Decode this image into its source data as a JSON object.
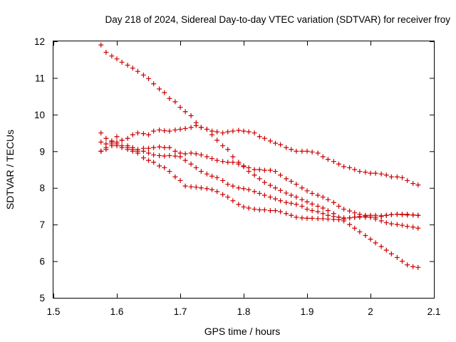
{
  "chart_data": {
    "type": "scatter",
    "title": "Day 218 of 2024, Sidereal Day-to-day VTEC variation (SDTVAR) for receiver froy",
    "xlabel": "GPS time / hours",
    "ylabel": "SDTVAR / TECUs",
    "xlim": [
      1.5,
      2.1
    ],
    "ylim": [
      5,
      12
    ],
    "xticks": [
      1.5,
      1.6,
      1.7,
      1.8,
      1.9,
      2.0,
      2.1
    ],
    "xtick_labels": [
      "1.5",
      "1.6",
      "1.7",
      "1.8",
      "1.9",
      "2",
      "2.1"
    ],
    "yticks": [
      5,
      6,
      7,
      8,
      9,
      10,
      11,
      12
    ],
    "ytick_labels": [
      "5",
      "6",
      "7",
      "8",
      "9",
      "10",
      "11",
      "12"
    ],
    "marker": "+",
    "color": "#cc0000",
    "series": [
      {
        "name": "series-1",
        "x": [
          1.575,
          1.583,
          1.592,
          1.6,
          1.608,
          1.617,
          1.625,
          1.633,
          1.642,
          1.65,
          1.658,
          1.667,
          1.675,
          1.683,
          1.692,
          1.7,
          1.708,
          1.717,
          1.725,
          1.733,
          1.742,
          1.75,
          1.758,
          1.767,
          1.775,
          1.783,
          1.792,
          1.8,
          1.808,
          1.817,
          1.825,
          1.833,
          1.842,
          1.85,
          1.858,
          1.867,
          1.875,
          1.883,
          1.892,
          1.9,
          1.908,
          1.917,
          1.925,
          1.933,
          1.942,
          1.95,
          1.958,
          1.967,
          1.975,
          1.983,
          1.992,
          2.0,
          2.008,
          2.017,
          2.025,
          2.033,
          2.042,
          2.05,
          2.058,
          2.067,
          2.075
        ],
        "y": [
          11.9,
          11.7,
          11.6,
          11.52,
          11.43,
          11.35,
          11.27,
          11.18,
          11.08,
          10.98,
          10.84,
          10.7,
          10.6,
          10.44,
          10.35,
          10.2,
          10.08,
          9.97,
          9.78,
          9.65,
          9.6,
          9.45,
          9.3,
          9.15,
          9.05,
          8.85,
          8.7,
          8.58,
          8.45,
          8.35,
          8.25,
          8.15,
          8.07,
          8.0,
          7.93,
          7.86,
          7.8,
          7.75,
          7.68,
          7.62,
          7.56,
          7.5,
          7.45,
          7.38,
          7.3,
          7.2,
          7.1,
          7.0,
          6.9,
          6.8,
          6.7,
          6.6,
          6.5,
          6.4,
          6.3,
          6.2,
          6.1,
          6.0,
          5.9,
          5.85,
          5.83
        ]
      },
      {
        "name": "series-2",
        "x": [
          1.575,
          1.583,
          1.592,
          1.6,
          1.608,
          1.617,
          1.625,
          1.633,
          1.642,
          1.65,
          1.658,
          1.667,
          1.675,
          1.683,
          1.692,
          1.7,
          1.708,
          1.717,
          1.725,
          1.733,
          1.742,
          1.75,
          1.758,
          1.767,
          1.775,
          1.783,
          1.792,
          1.8,
          1.808,
          1.817,
          1.825,
          1.833,
          1.842,
          1.85,
          1.858,
          1.867,
          1.875,
          1.883,
          1.892,
          1.9,
          1.908,
          1.917,
          1.925,
          1.933,
          1.942,
          1.95,
          1.958,
          1.967,
          1.975,
          1.983,
          1.992,
          2.0,
          2.008,
          2.017,
          2.025,
          2.033,
          2.042,
          2.05,
          2.058,
          2.067,
          2.075
        ],
        "y": [
          9.0,
          9.1,
          9.2,
          9.25,
          9.3,
          9.35,
          9.45,
          9.5,
          9.48,
          9.45,
          9.55,
          9.58,
          9.56,
          9.55,
          9.58,
          9.6,
          9.62,
          9.65,
          9.7,
          9.65,
          9.6,
          9.55,
          9.53,
          9.5,
          9.53,
          9.55,
          9.57,
          9.55,
          9.53,
          9.5,
          9.4,
          9.35,
          9.28,
          9.22,
          9.18,
          9.1,
          9.05,
          9.0,
          9.0,
          9.0,
          8.98,
          8.95,
          8.85,
          8.78,
          8.72,
          8.65,
          8.58,
          8.55,
          8.5,
          8.45,
          8.43,
          8.4,
          8.4,
          8.38,
          8.35,
          8.3,
          8.3,
          8.28,
          8.2,
          8.12,
          8.08
        ]
      },
      {
        "name": "series-3",
        "x": [
          1.575,
          1.583,
          1.592,
          1.6,
          1.608,
          1.617,
          1.625,
          1.633,
          1.642,
          1.65,
          1.658,
          1.667,
          1.675,
          1.683,
          1.692,
          1.7,
          1.708,
          1.717,
          1.725,
          1.733,
          1.742,
          1.75,
          1.758,
          1.767,
          1.775,
          1.783,
          1.792,
          1.8,
          1.808,
          1.817,
          1.825,
          1.833,
          1.842,
          1.85,
          1.858,
          1.867,
          1.875,
          1.883,
          1.892,
          1.9,
          1.908,
          1.917,
          1.925,
          1.933,
          1.942,
          1.95,
          1.958,
          1.967,
          1.975,
          1.983,
          1.992,
          2.0,
          2.008,
          2.017,
          2.025,
          2.033,
          2.042,
          2.05,
          2.058,
          2.067,
          2.075
        ],
        "y": [
          9.5,
          9.35,
          9.28,
          9.2,
          9.15,
          9.1,
          9.05,
          9.05,
          9.08,
          9.08,
          9.1,
          9.12,
          9.1,
          9.1,
          9.0,
          8.95,
          8.93,
          8.95,
          8.93,
          8.9,
          8.85,
          8.8,
          8.75,
          8.72,
          8.7,
          8.7,
          8.65,
          8.6,
          8.55,
          8.5,
          8.5,
          8.48,
          8.48,
          8.45,
          8.35,
          8.25,
          8.18,
          8.1,
          8.0,
          7.92,
          7.85,
          7.8,
          7.75,
          7.68,
          7.6,
          7.5,
          7.42,
          7.37,
          7.32,
          7.28,
          7.23,
          7.2,
          7.2,
          7.22,
          7.25,
          7.27,
          7.28,
          7.28,
          7.28,
          7.26,
          7.25
        ]
      },
      {
        "name": "series-4",
        "x": [
          1.575,
          1.583,
          1.592,
          1.6,
          1.608,
          1.617,
          1.625,
          1.633,
          1.642,
          1.65,
          1.658,
          1.667,
          1.675,
          1.683,
          1.692,
          1.7,
          1.708,
          1.717,
          1.725,
          1.733,
          1.742,
          1.75,
          1.758,
          1.767,
          1.775,
          1.783,
          1.792,
          1.8,
          1.808,
          1.817,
          1.825,
          1.833,
          1.842,
          1.85,
          1.858,
          1.867,
          1.875,
          1.883,
          1.892,
          1.9,
          1.908,
          1.917,
          1.925,
          1.933,
          1.942,
          1.95,
          1.958,
          1.967,
          1.975,
          1.983,
          1.992,
          2.0,
          2.008,
          2.017,
          2.025,
          2.033,
          2.042,
          2.05,
          2.058,
          2.067,
          2.075
        ],
        "y": [
          9.25,
          9.2,
          9.15,
          9.15,
          9.1,
          9.05,
          9.0,
          9.0,
          9.0,
          8.95,
          8.9,
          8.88,
          8.87,
          8.88,
          8.87,
          8.85,
          8.75,
          8.65,
          8.55,
          8.45,
          8.38,
          8.32,
          8.28,
          8.2,
          8.1,
          8.05,
          8.0,
          7.98,
          7.95,
          7.9,
          7.85,
          7.8,
          7.75,
          7.7,
          7.65,
          7.6,
          7.58,
          7.55,
          7.5,
          7.42,
          7.38,
          7.35,
          7.3,
          7.25,
          7.22,
          7.2,
          7.18,
          7.18,
          7.2,
          7.2,
          7.2,
          7.2,
          7.15,
          7.1,
          7.05,
          7.02,
          7.0,
          6.98,
          6.95,
          6.93,
          6.9
        ]
      },
      {
        "name": "series-5",
        "x": [
          1.575,
          1.583,
          1.592,
          1.6,
          1.608,
          1.617,
          1.625,
          1.633,
          1.642,
          1.65,
          1.658,
          1.667,
          1.675,
          1.683,
          1.692,
          1.7,
          1.708,
          1.717,
          1.725,
          1.733,
          1.742,
          1.75,
          1.758,
          1.767,
          1.775,
          1.783,
          1.792,
          1.8,
          1.808,
          1.817,
          1.825,
          1.833,
          1.842,
          1.85,
          1.858,
          1.867,
          1.875,
          1.883,
          1.892,
          1.9,
          1.908,
          1.917,
          1.925,
          1.933,
          1.942,
          1.95,
          1.958,
          1.967,
          1.975,
          1.983,
          1.992,
          2.0,
          2.008,
          2.017,
          2.025,
          2.033,
          2.042,
          2.05,
          2.058,
          2.067,
          2.075
        ],
        "y": [
          9.0,
          9.05,
          9.25,
          9.4,
          9.3,
          9.15,
          9.1,
          8.95,
          8.82,
          8.75,
          8.7,
          8.6,
          8.55,
          8.45,
          8.3,
          8.2,
          8.05,
          8.03,
          8.02,
          8.0,
          7.98,
          7.95,
          7.9,
          7.82,
          7.75,
          7.65,
          7.55,
          7.48,
          7.45,
          7.42,
          7.4,
          7.4,
          7.38,
          7.38,
          7.35,
          7.3,
          7.25,
          7.2,
          7.18,
          7.17,
          7.17,
          7.16,
          7.16,
          7.15,
          7.14,
          7.13,
          7.15,
          7.18,
          7.2,
          7.22,
          7.25,
          7.25,
          7.25,
          7.24,
          7.25,
          7.27,
          7.28,
          7.27,
          7.26,
          7.26,
          7.25
        ]
      }
    ]
  }
}
